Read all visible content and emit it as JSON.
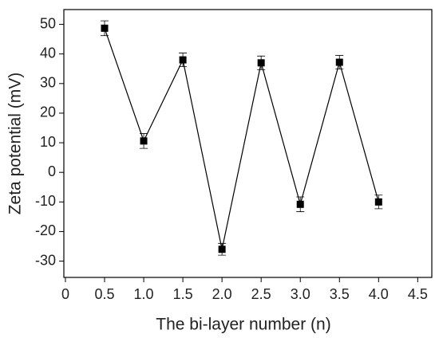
{
  "chart_data": {
    "type": "line",
    "x_label": "The bi-layer number (n)",
    "y_label": "Zeta potential (mV)",
    "series": [
      {
        "color": "#000000",
        "x": [
          0.5,
          1.0,
          1.5,
          2.0,
          2.5,
          3.0,
          3.5,
          4.0
        ],
        "values": [
          48.7,
          10.6,
          38.0,
          -26.0,
          37.0,
          -10.8,
          37.2,
          -10.0
        ],
        "errors": [
          2.5,
          2.5,
          2.3,
          2.0,
          2.3,
          2.5,
          2.3,
          2.3
        ]
      }
    ],
    "xlim": [
      -0.02,
      4.68
    ],
    "xticks": [
      0,
      0.5,
      {
        "value": 1,
        "label": "1.0"
      },
      1.5,
      {
        "value": 2,
        "label": "2.0"
      },
      2.5,
      {
        "value": 3,
        "label": "3.0"
      },
      3.5,
      {
        "value": 4,
        "label": "4.0"
      },
      4.5
    ],
    "ylim": [
      -35.5,
      55
    ],
    "yticks": [
      -30,
      -20,
      -10,
      0,
      10,
      20,
      30,
      40,
      50
    ],
    "grid": false
  }
}
